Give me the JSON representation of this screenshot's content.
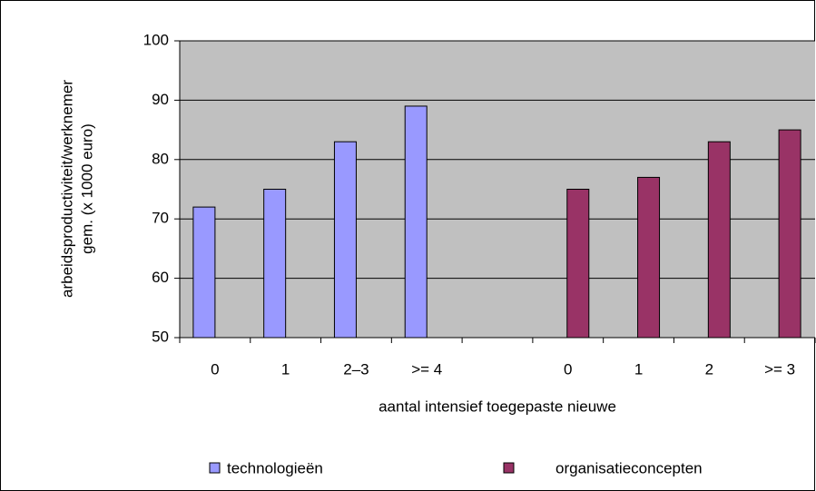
{
  "chart_data": {
    "type": "bar",
    "ylabel": [
      "arbeidsproductiviteit/werknemer",
      "gem. (x 1000 euro)"
    ],
    "xlabel": "aantal intensief toegepaste nieuwe",
    "categories": [
      "0",
      "1",
      "2–3",
      ">= 4",
      null,
      "0",
      "1",
      "2",
      ">= 3"
    ],
    "series": [
      {
        "name": "technologieën",
        "color": "#9999ff",
        "values": [
          72,
          75,
          83,
          89,
          null,
          null,
          null,
          null,
          null
        ]
      },
      {
        "name": "organisatieconcepten",
        "color": "#993366",
        "values": [
          null,
          null,
          null,
          null,
          null,
          75,
          77,
          83,
          85
        ]
      }
    ],
    "ylim": [
      50,
      100
    ],
    "yticks": [
      50,
      60,
      70,
      80,
      90,
      100
    ],
    "grid": true,
    "legend": "bottom"
  }
}
